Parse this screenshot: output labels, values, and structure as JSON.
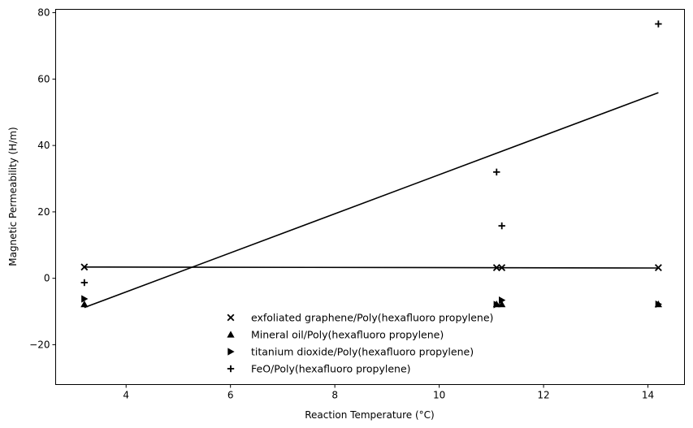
{
  "chart_data": {
    "type": "scatter",
    "title": "",
    "xlabel": "Reaction Temperature (°C)",
    "ylabel": "Magnetic Permeability (H/m)",
    "xlim": [
      2.65,
      14.7
    ],
    "ylim": [
      -32,
      81
    ],
    "xticks": [
      4,
      6,
      8,
      10,
      12,
      14
    ],
    "yticks": [
      -20,
      0,
      20,
      40,
      60,
      80
    ],
    "xtick_labels": [
      "4",
      "6",
      "8",
      "10",
      "12",
      "14"
    ],
    "ytick_labels": [
      "−20",
      "0",
      "20",
      "40",
      "60",
      "80"
    ],
    "grid": false,
    "legend_position": "lower center",
    "series": [
      {
        "name": "exfoliated graphene/Poly(hexafluoro propylene)",
        "marker": "x",
        "x": [
          3.2,
          11.1,
          11.2,
          14.2
        ],
        "y": [
          3.4,
          3.2,
          3.2,
          3.2
        ]
      },
      {
        "name": "Mineral oil/Poly(hexafluoro propylene)",
        "marker": "triangle-up",
        "x": [
          3.2,
          11.1,
          11.2,
          14.2
        ],
        "y": [
          -7.8,
          -7.8,
          -7.8,
          -7.8
        ]
      },
      {
        "name": "titanium dioxide/Poly(hexafluoro propylene)",
        "marker": "triangle-right",
        "x": [
          3.2,
          11.1,
          11.2,
          14.2
        ],
        "y": [
          -6.2,
          -7.9,
          -6.6,
          -7.8
        ]
      },
      {
        "name": "FeO/Poly(hexafluoro propylene)",
        "marker": "plus",
        "x": [
          3.2,
          11.1,
          11.2,
          14.2
        ],
        "y": [
          -1.3,
          32.0,
          15.8,
          76.6
        ]
      }
    ],
    "lines": [
      {
        "x": [
          3.2,
          14.2
        ],
        "y": [
          3.4,
          3.1
        ]
      },
      {
        "x": [
          3.2,
          14.2
        ],
        "y": [
          -8.8,
          55.9
        ]
      }
    ]
  }
}
